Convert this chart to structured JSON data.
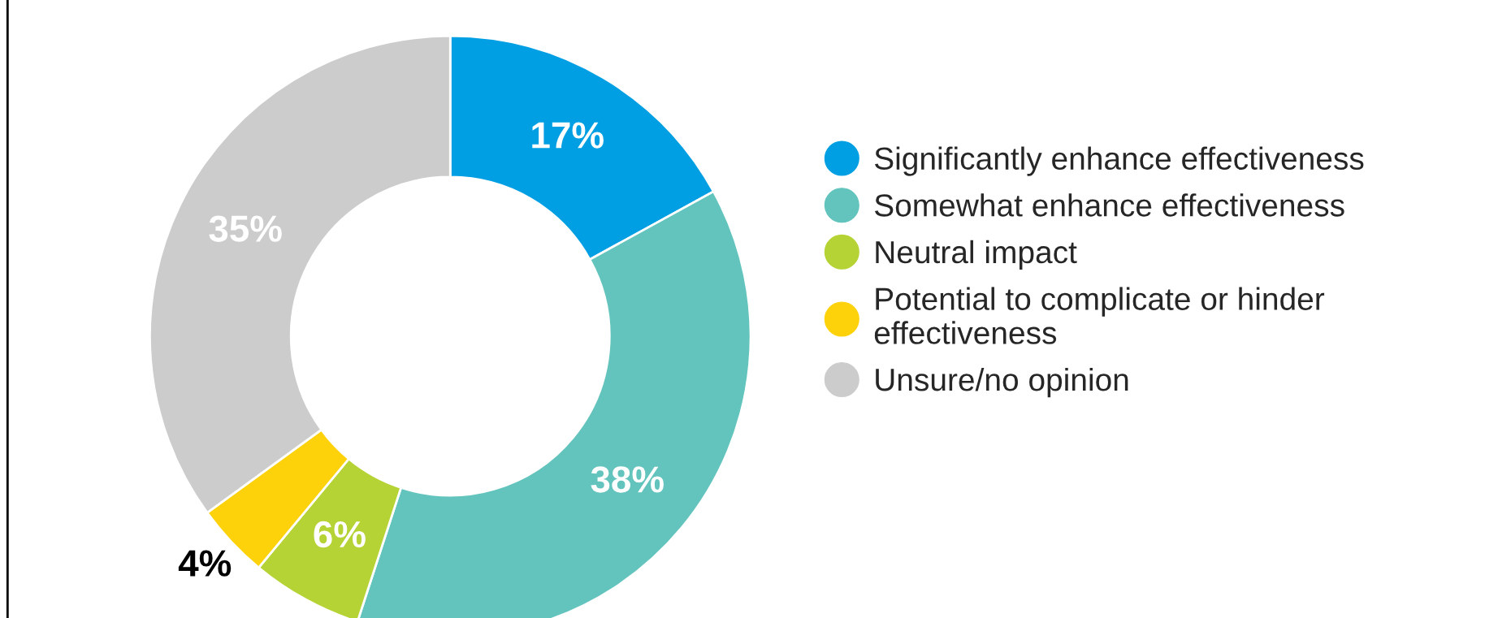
{
  "chart_data": {
    "type": "donut",
    "categories": [
      "Significantly enhance effectiveness",
      "Somewhat enhance effectiveness",
      "Neutral impact",
      "Potential to complicate or hinder\neffectiveness",
      "Unsure/no opinion"
    ],
    "values": [
      17,
      38,
      6,
      4,
      35
    ],
    "colors": [
      "#009fe3",
      "#62c4bd",
      "#b5d334",
      "#fdd20a",
      "#cccccc"
    ],
    "value_labels": [
      "17%",
      "38%",
      "6%",
      "4%",
      "35%"
    ],
    "legend": "right"
  }
}
